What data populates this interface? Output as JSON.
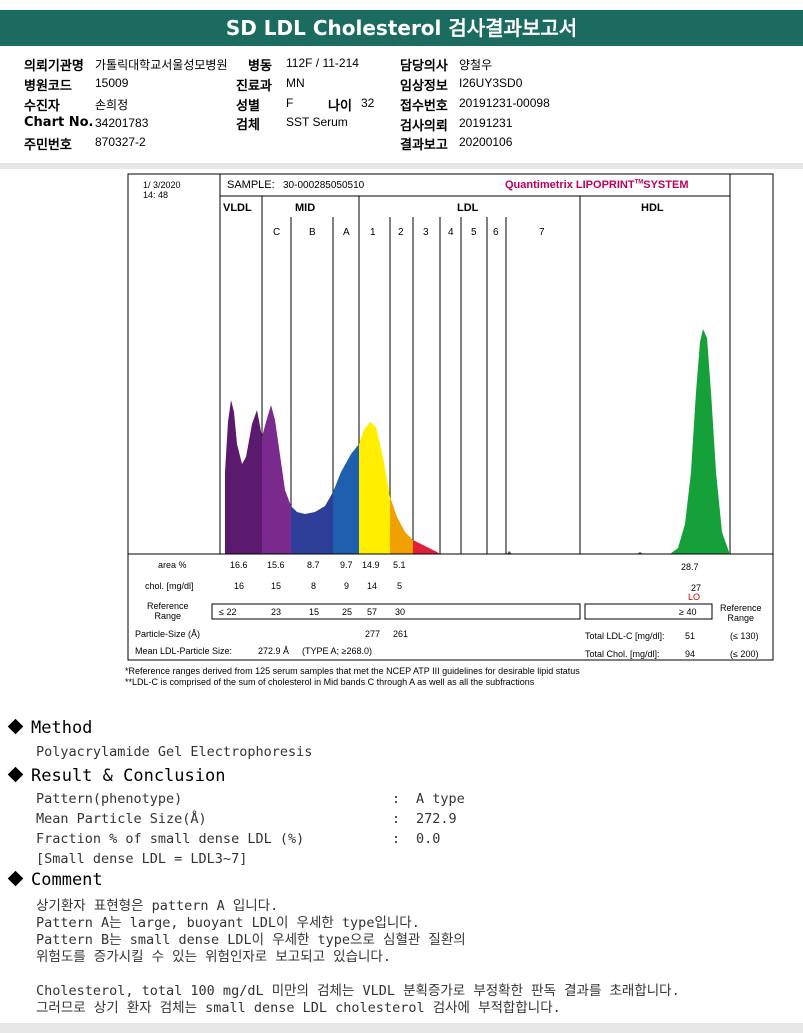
{
  "header": {
    "title": "SD LDL Cholesterol 검사결과보고서"
  },
  "patient_info": {
    "labels": {
      "institution": "의뢰기관명",
      "hospital_code": "병원코드",
      "patient_name": "수진자",
      "chart_no": "Chart No.",
      "resident_no": "주민번호",
      "ward": "병동",
      "department": "진료과",
      "sex": "성별",
      "age": "나이",
      "specimen": "검체",
      "doctor": "담당의사",
      "clinical_info": "임상정보",
      "receipt_no": "접수번호",
      "request_date": "검사의뢰",
      "report_date": "결과보고"
    },
    "values": {
      "institution": "가톨릭대학교서울성모병원",
      "hospital_code": "15009",
      "patient_name": "손희정",
      "chart_no": "34201783",
      "resident_no": "870327-2",
      "ward": "112F / 11-214",
      "department": "MN",
      "sex": "F",
      "age": "32",
      "specimen": "SST Serum",
      "doctor": "양철우",
      "clinical_info": "I26UY3SD0",
      "receipt_no": "20191231-00098",
      "request_date": "20191231",
      "report_date": "20200106"
    }
  },
  "report": {
    "date": "1/ 3/2020",
    "time": "14: 48",
    "sample_label": "SAMPLE:",
    "sample_id": "30-000285050510",
    "brand": "Quantimetrix LIPOPRINT",
    "brand_tm": "TM",
    "brand_suffix": "SYSTEM",
    "band_groups": [
      "VLDL",
      "MID",
      "LDL",
      "HDL"
    ],
    "sub_bands": [
      "C",
      "B",
      "A",
      "1",
      "2",
      "3",
      "4",
      "5",
      "6",
      "7"
    ],
    "row_labels": {
      "area": "area %",
      "chol": "chol. [mg/dl]",
      "ref": "Reference\nRange",
      "particle": "Particle-Size (Å)",
      "mean": "Mean LDL-Particle Size:"
    },
    "area_values": [
      "16.6",
      "15.6",
      "8.7",
      "9.7",
      "14.9",
      "5.1"
    ],
    "hdl_area": "28.7",
    "chol_values": [
      "16",
      "15",
      "8",
      "9",
      "14",
      "5"
    ],
    "hdl_chol": "27",
    "hdl_flag": "LO",
    "ref_values": [
      "≤ 22",
      "23",
      "15",
      "25",
      "57",
      "30"
    ],
    "hdl_ref": "≥ 40",
    "ref_label_right": "Reference\nRange",
    "particle_values": [
      "277",
      "261"
    ],
    "mean_value": "272.9 Å",
    "mean_type": "(TYPE A; ≥268.0)",
    "total_ldl_label": "Total LDL-C [mg/dl]:",
    "total_ldl_value": "51",
    "total_ldl_range": "(≤ 130)",
    "total_chol_label": "Total Chol. [mg/dl]:",
    "total_chol_value": "94",
    "total_chol_range": "(≤ 200)",
    "footnote1": "*Reference ranges derived from 125 serum samples that met the NCEP ATP III guidelines for desirable lipid status",
    "footnote2": "**LDL-C is comprised of the sum of cholesterol in Mid bands C through A as well as all the subfractions"
  },
  "colors": {
    "header": "#1b6b60",
    "vldl": "#5c1a6e",
    "midc": "#7a2a8c",
    "midb": "#2e3f9a",
    "mida": "#1f5fb0",
    "ldl1": "#ffee00",
    "ldl2": "#f0a000",
    "ldl3": "#e0203a",
    "hdl": "#16a03a",
    "brand": "#c0005a"
  },
  "method": {
    "title": "Method",
    "text": "Polyacrylamide Gel Electrophoresis"
  },
  "result": {
    "title": "Result & Conclusion",
    "rows": [
      {
        "label": "Pattern(phenotype)",
        "value": "A type"
      },
      {
        "label": "Mean Particle Size(Å)",
        "value": "272.9"
      },
      {
        "label": "Fraction % of small dense LDL (%)",
        "value": "0.0"
      }
    ],
    "note": "[Small dense LDL = LDL3~7]"
  },
  "comment": {
    "title": "Comment",
    "lines": [
      "상기환자 표현형은 pattern A 입니다.",
      "Pattern A는 large, buoyant LDL이 우세한 type입니다.",
      "Pattern B는 small dense LDL이 우세한 type으로 심혈관 질환의",
      "위험도를 증가시킬 수 있는 위험인자로 보고되고 있습니다.",
      "",
      "Cholesterol, total 100 mg/dL 미만의 검체는 VLDL 분획증가로 부정확한 판독 결과를 초래합니다.",
      "그러므로 상기 환자 검체는 small dense LDL cholesterol 검사에 부적합합니다."
    ]
  }
}
